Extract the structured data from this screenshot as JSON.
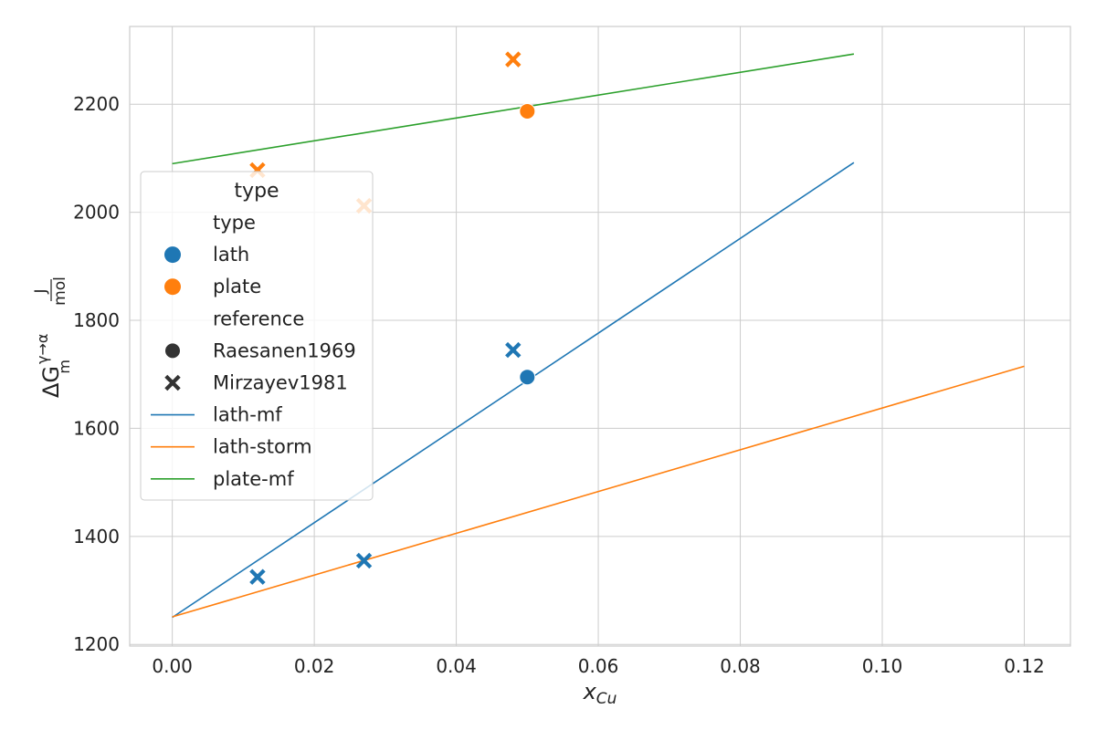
{
  "chart_data": {
    "type": "scatter",
    "xlabel_main": "x",
    "xlabel_sub": "Cu",
    "ylabel": {
      "delta_g": "ΔG",
      "sup": "γ→α",
      "sub": "m",
      "num": "J",
      "den": "mol"
    },
    "xlim": [
      -0.006,
      0.1265
    ],
    "ylim": [
      1197,
      2344
    ],
    "x_ticks": [
      0.0,
      0.02,
      0.04,
      0.06,
      0.08,
      0.1,
      0.12
    ],
    "x_tick_labels": [
      "0.00",
      "0.02",
      "0.04",
      "0.06",
      "0.08",
      "0.10",
      "0.12"
    ],
    "y_ticks": [
      1200,
      1400,
      1600,
      1800,
      2000,
      2200
    ],
    "y_tick_labels": [
      "1200",
      "1400",
      "1600",
      "1800",
      "2000",
      "2200"
    ],
    "grid": true,
    "legend": {
      "placement": "center-left",
      "title": "type",
      "entries": [
        {
          "kind": "header",
          "label": "type"
        },
        {
          "kind": "hue",
          "label": "lath",
          "color": "#1f77b4"
        },
        {
          "kind": "hue",
          "label": "plate",
          "color": "#ff7f0e"
        },
        {
          "kind": "header",
          "label": "reference"
        },
        {
          "kind": "style",
          "label": "Raesanen1969",
          "marker": "circle"
        },
        {
          "kind": "style",
          "label": "Mirzayev1981",
          "marker": "x"
        },
        {
          "kind": "line",
          "label": "lath-mf",
          "color": "#1f77b4"
        },
        {
          "kind": "line",
          "label": "lath-storm",
          "color": "#ff7f0e"
        },
        {
          "kind": "line",
          "label": "plate-mf",
          "color": "#2ca02c"
        }
      ]
    },
    "points": [
      {
        "x": 0.012,
        "y": 1325,
        "type": "lath",
        "reference": "Mirzayev1981"
      },
      {
        "x": 0.027,
        "y": 1355,
        "type": "lath",
        "reference": "Mirzayev1981"
      },
      {
        "x": 0.048,
        "y": 1745,
        "type": "lath",
        "reference": "Mirzayev1981"
      },
      {
        "x": 0.05,
        "y": 1695,
        "type": "lath",
        "reference": "Raesanen1969"
      },
      {
        "x": 0.012,
        "y": 2078,
        "type": "plate",
        "reference": "Mirzayev1981"
      },
      {
        "x": 0.027,
        "y": 2012,
        "type": "plate",
        "reference": "Mirzayev1981"
      },
      {
        "x": 0.048,
        "y": 2283,
        "type": "plate",
        "reference": "Mirzayev1981"
      },
      {
        "x": 0.05,
        "y": 2187,
        "type": "plate",
        "reference": "Raesanen1969"
      }
    ],
    "lines": [
      {
        "name": "lath-mf",
        "color": "#1f77b4",
        "x": [
          0.0,
          0.096
        ],
        "y": [
          1250,
          2092
        ]
      },
      {
        "name": "lath-storm",
        "color": "#ff7f0e",
        "x": [
          0.0,
          0.12
        ],
        "y": [
          1251,
          1715
        ]
      },
      {
        "name": "plate-mf",
        "color": "#2ca02c",
        "x": [
          0.0,
          0.096
        ],
        "y": [
          2090,
          2293
        ]
      }
    ],
    "hue_colors": {
      "lath": "#1f77b4",
      "plate": "#ff7f0e"
    }
  }
}
